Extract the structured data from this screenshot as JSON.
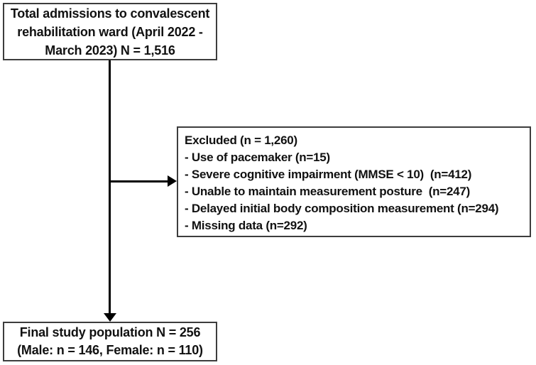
{
  "diagram": {
    "top_box": {
      "lines": [
        "Total admissions to convalescent",
        "rehabilitation ward (April 2022 -",
        "March 2023) N = 1,516"
      ]
    },
    "excluded_box": {
      "title": "Excluded (n = 1,260)",
      "items": [
        "- Use of pacemaker (n=15)",
        "- Severe cognitive impairment (MMSE < 10)  (n=412)",
        "- Unable to maintain measurement posture  (n=247)",
        "- Delayed initial body composition measurement (n=294)",
        "- Missing data (n=292)"
      ]
    },
    "final_box": {
      "lines": [
        "Final study population N = 256",
        "(Male: n = 146, Female: n = 110)"
      ]
    },
    "colors": {
      "border": "#3d3d3d",
      "arrow": "#000000",
      "text": "#111111",
      "background": "#ffffff"
    }
  }
}
